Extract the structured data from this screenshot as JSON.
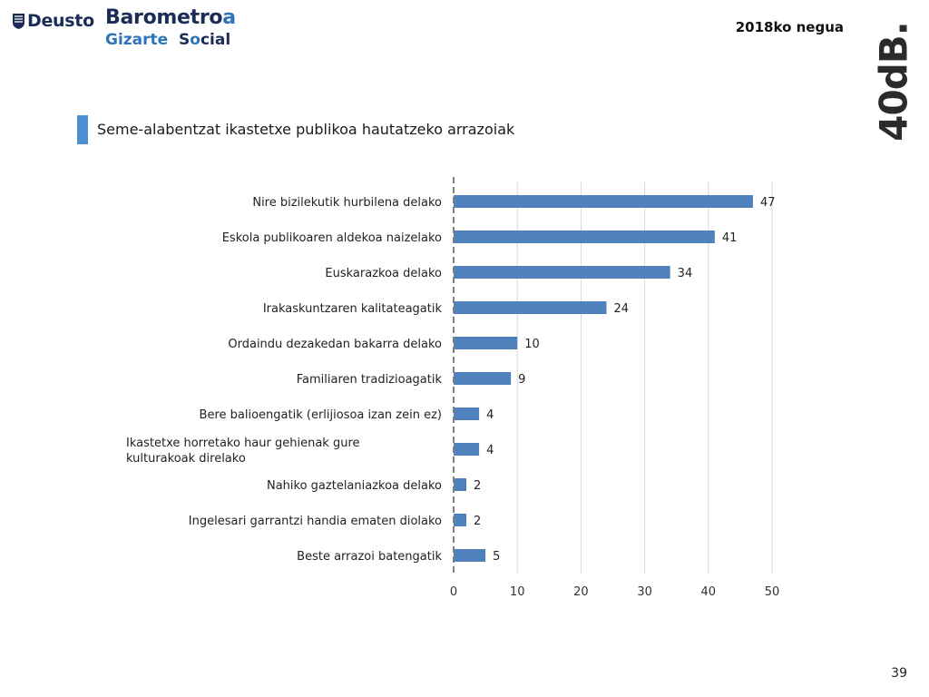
{
  "header": {
    "deusto": "Deusto",
    "barometro_main": "Barometro",
    "barometro_accent": "a",
    "gizarte": "Gizarte",
    "social_dark": "S",
    "social_o": "o",
    "social_rest": "cial",
    "season": "2018ko negua",
    "logo_text": "40dB."
  },
  "colors": {
    "bar": "#4f81bd",
    "grid": "#d9d9d9",
    "axis": "#808080",
    "accent": "#4d8fd3",
    "brand_dark": "#1b2d57",
    "brand_blue": "#2f74b9"
  },
  "chart_data": {
    "type": "bar",
    "orientation": "horizontal",
    "title": "Seme-alabentzat ikastetxe publikoa hautatzeko arrazoiak",
    "categories": [
      "Nire bizilekutik hurbilena delako",
      "Eskola publikoaren aldekoa naizelako",
      "Euskarazkoa delako",
      "Irakaskuntzaren kalitateagatik",
      "Ordaindu dezakedan bakarra delako",
      "Familiaren tradizioagatik",
      "Bere balioengatik (erlijiosoa izan zein ez)",
      "Ikastetxe horretako haur gehienak gure kulturakoak direlako",
      "Nahiko gaztelaniazkoa delako",
      "Ingelesari garrantzi handia ematen diolako",
      "Beste arrazoi batengatik"
    ],
    "values": [
      47,
      41,
      34,
      24,
      10,
      9,
      4,
      4,
      2,
      2,
      5
    ],
    "xlim": [
      0,
      50
    ],
    "xticks": [
      0,
      10,
      20,
      30,
      40,
      50
    ],
    "grid": true
  },
  "page_number": "39"
}
